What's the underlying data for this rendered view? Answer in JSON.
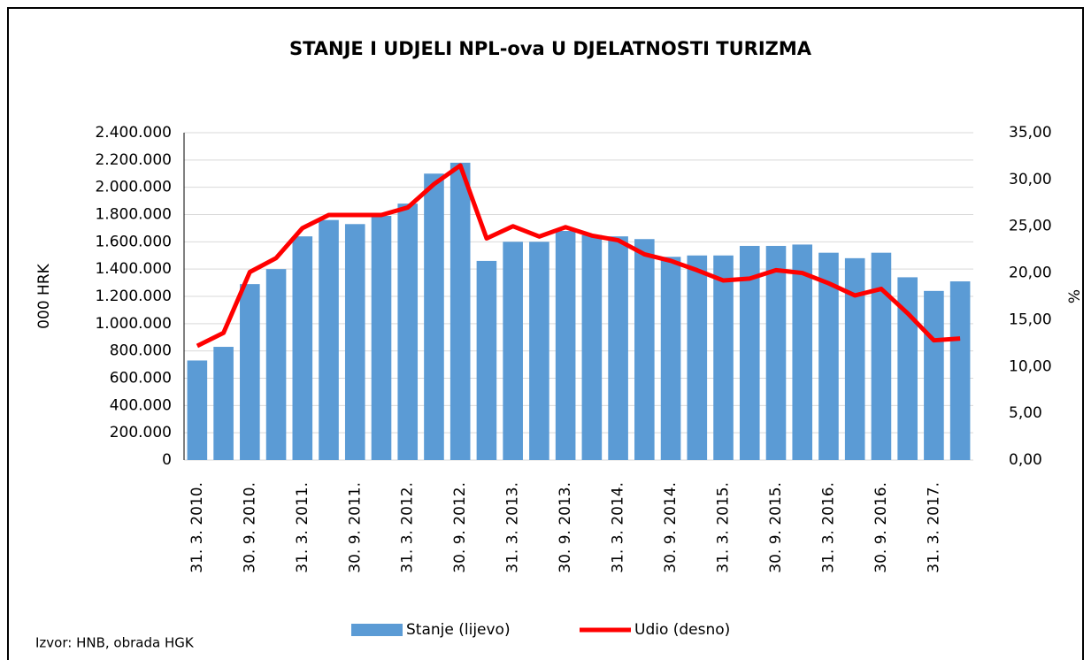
{
  "chart_data": {
    "type": "bar_line",
    "title": "STANJE I UDJELI NPL-ova U DJELATNOSTI TURIZMA",
    "ylabel": "000 HRK",
    "y2label": "%",
    "source": "Izvor: HNB, obrada HGK",
    "categories": [
      "31. 3. 2010.",
      null,
      "30. 9. 2010.",
      null,
      "31. 3. 2011.",
      null,
      "30. 9. 2011.",
      null,
      "31. 3. 2012.",
      null,
      "30. 9. 2012.",
      null,
      "31. 3. 2013.",
      null,
      "30. 9. 2013.",
      null,
      "31. 3. 2014.",
      null,
      "30. 9. 2014.",
      null,
      "31. 3. 2015.",
      null,
      "30. 9. 2015.",
      null,
      "31. 3. 2016.",
      null,
      "30. 9. 2016.",
      null,
      "31. 3. 2017.",
      null
    ],
    "series": [
      {
        "name": "Stanje  (lijevo)",
        "color": "#5b9bd5",
        "kind": "bar",
        "values": [
          730000,
          830000,
          1290000,
          1400000,
          1640000,
          1760000,
          1730000,
          1790000,
          1880000,
          2100000,
          2180000,
          1460000,
          1600000,
          1600000,
          1680000,
          1650000,
          1640000,
          1620000,
          1490000,
          1500000,
          1500000,
          1570000,
          1570000,
          1580000,
          1520000,
          1480000,
          1520000,
          1340000,
          1240000,
          1310000
        ]
      },
      {
        "name": "Udio (desno)",
        "color": "#ff0000",
        "kind": "line",
        "axis": "y2",
        "values": [
          12.2,
          13.6,
          20.1,
          21.6,
          24.8,
          26.2,
          26.2,
          26.2,
          27.0,
          29.5,
          31.5,
          23.7,
          25.0,
          23.9,
          24.9,
          24.0,
          23.5,
          22.0,
          21.3,
          20.3,
          19.2,
          19.4,
          20.3,
          20.0,
          18.9,
          17.6,
          18.3,
          15.7,
          12.8,
          13.0
        ]
      }
    ],
    "ylim": [
      0,
      2400000
    ],
    "yticks": [
      0,
      {
        "value": 200000,
        "label": "200.000"
      },
      {
        "value": 400000,
        "label": "400.000"
      },
      {
        "value": 600000,
        "label": "600.000"
      },
      {
        "value": 800000,
        "label": "800.000"
      },
      {
        "value": 1000000,
        "label": "1.000.000"
      },
      {
        "value": 1200000,
        "label": "1.200.000"
      },
      {
        "value": 1400000,
        "label": "1.400.000"
      },
      {
        "value": 1600000,
        "label": "1.600.000"
      },
      {
        "value": 1800000,
        "label": "1.800.000"
      },
      {
        "value": 2000000,
        "label": "2.000.000"
      },
      {
        "value": 2200000,
        "label": "2.200.000"
      },
      {
        "value": 2400000,
        "label": "2.400.000"
      }
    ],
    "y2lim": [
      0,
      35
    ],
    "y2ticks": [
      {
        "value": 0,
        "label": "0,00"
      },
      {
        "value": 5,
        "label": "5,00"
      },
      {
        "value": 10,
        "label": "10,00"
      },
      {
        "value": 15,
        "label": "15,00"
      },
      {
        "value": 20,
        "label": "20,00"
      },
      {
        "value": 25,
        "label": "25,00"
      },
      {
        "value": 30,
        "label": "30,00"
      },
      {
        "value": 35,
        "label": "35,00"
      }
    ],
    "grid": true,
    "legend": "bottom"
  }
}
